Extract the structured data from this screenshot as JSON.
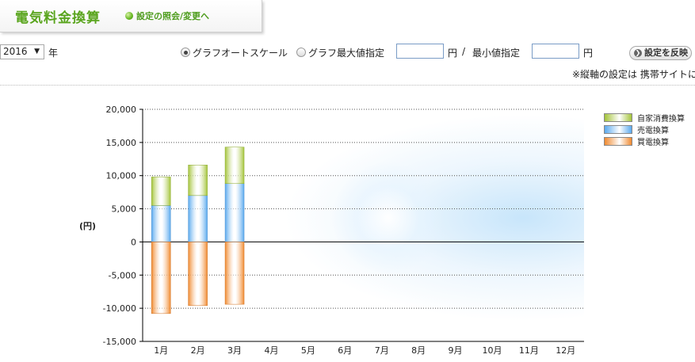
{
  "header": {
    "title": "電気料金換算",
    "settings_link": "設定の照会/変更へ"
  },
  "controls": {
    "year_value": "2016",
    "year_unit": "年",
    "radio_auto": "グラフオートスケール",
    "radio_max": "グラフ最大値指定",
    "max_value": "",
    "yen": "円",
    "slash": "/",
    "min_label": "最小値指定",
    "min_value": "",
    "apply_button": "設定を反映",
    "note": "※縦軸の設定は 携帯サイトに"
  },
  "colors": {
    "self_consumption": "#a4c43a",
    "sell": "#5aa9ee",
    "buy": "#f08a30"
  },
  "chart_data": {
    "type": "bar",
    "stacked": true,
    "unit_label": "(円)",
    "categories": [
      "1月",
      "2月",
      "3月",
      "4月",
      "5月",
      "6月",
      "7月",
      "8月",
      "9月",
      "10月",
      "11月",
      "12月"
    ],
    "series": [
      {
        "name": "自家消費換算",
        "values": [
          4300,
          4600,
          5500,
          0,
          0,
          0,
          0,
          0,
          0,
          0,
          0,
          0
        ]
      },
      {
        "name": "売電換算",
        "values": [
          5500,
          7000,
          8800,
          0,
          0,
          0,
          0,
          0,
          0,
          0,
          0,
          0
        ]
      },
      {
        "name": "買電換算",
        "values": [
          -10800,
          -9600,
          -9400,
          0,
          0,
          0,
          0,
          0,
          0,
          0,
          0,
          0
        ]
      }
    ],
    "ylim": [
      -15000,
      20000
    ],
    "yticks": [
      "20,000",
      "15,000",
      "10,000",
      "5,000",
      "0",
      "-5,000",
      "-10,000",
      "-15,000"
    ],
    "grid": true,
    "legend_position": "top-right"
  }
}
